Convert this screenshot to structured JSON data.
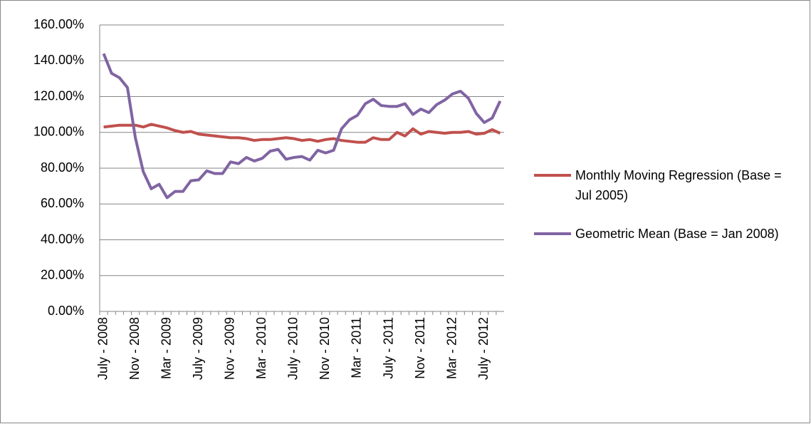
{
  "chart_data": {
    "type": "line",
    "categories": [
      "July - 2008",
      null,
      null,
      null,
      "Nov - 2008",
      null,
      null,
      null,
      "Mar - 2009",
      null,
      null,
      null,
      "July - 2009",
      null,
      null,
      null,
      "Nov - 2009",
      null,
      null,
      null,
      "Mar - 2010",
      null,
      null,
      null,
      "July - 2010",
      null,
      null,
      null,
      "Nov - 2010",
      null,
      null,
      null,
      "Mar - 2011",
      null,
      null,
      null,
      "July - 2011",
      null,
      null,
      null,
      "Nov - 2011",
      null,
      null,
      null,
      "Mar - 2012",
      null,
      null,
      null,
      "July - 2012",
      null,
      null
    ],
    "series": [
      {
        "name": "Monthly Moving Regression (Base = Jul 2005)",
        "color": "#c0504d",
        "values": [
          103,
          103.5,
          104,
          104,
          104,
          103,
          104.5,
          103.5,
          102.5,
          101,
          100,
          100.5,
          99,
          98.5,
          98,
          97.5,
          97,
          97,
          96.5,
          95.5,
          96,
          96,
          96.5,
          97,
          96.5,
          95.5,
          96,
          95,
          96,
          96.5,
          95.5,
          95,
          94.5,
          94.5,
          97,
          96,
          96,
          100,
          98,
          102,
          99,
          100.5,
          100,
          99.5,
          100,
          100,
          100.5,
          99,
          99.5,
          101.5,
          99.5
        ]
      },
      {
        "name": "Geometric Mean (Base = Jan 2008)",
        "color": "#8064a2",
        "values": [
          144,
          133,
          130.5,
          125,
          97,
          78,
          68.5,
          71,
          63.5,
          67,
          67,
          73,
          73.5,
          78.5,
          77,
          77,
          83.5,
          82.5,
          86,
          84,
          85.5,
          89.5,
          90.5,
          85,
          86,
          86.5,
          84.5,
          90,
          88.5,
          90,
          102,
          107,
          109.5,
          116,
          118.5,
          115,
          114.5,
          114.5,
          116,
          110,
          113,
          111,
          115.5,
          118,
          121.5,
          123,
          119,
          110.5,
          105.5,
          108,
          117.5
        ]
      }
    ],
    "ylim": [
      0,
      160
    ],
    "yticks": [
      {
        "value": 0,
        "label": "0.00%"
      },
      {
        "value": 20,
        "label": "20.00%"
      },
      {
        "value": 40,
        "label": "40.00%"
      },
      {
        "value": 60,
        "label": "60.00%"
      },
      {
        "value": 80,
        "label": "80.00%"
      },
      {
        "value": 100,
        "label": "100.00%"
      },
      {
        "value": 120,
        "label": "120.00%"
      },
      {
        "value": 140,
        "label": "140.00%"
      },
      {
        "value": 160,
        "label": "160.00%"
      }
    ],
    "grid": true,
    "legend": "right"
  }
}
